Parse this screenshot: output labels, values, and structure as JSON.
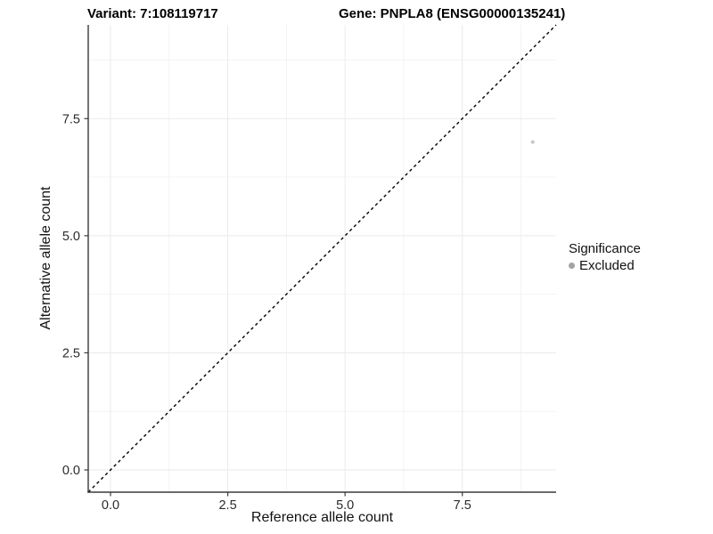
{
  "chart_data": {
    "type": "scatter",
    "title_left": "Variant: 7:108119717",
    "title_right": "Gene: PNPLA8 (ENSG00000135241)",
    "xlabel": "Reference allele count",
    "ylabel": "Alternative allele count",
    "xlim": [
      -0.475,
      9.5
    ],
    "ylim": [
      -0.475,
      9.5
    ],
    "x_ticks": [
      0.0,
      2.5,
      5.0,
      7.5
    ],
    "y_ticks": [
      0.0,
      2.5,
      5.0,
      7.5
    ],
    "x_tick_labels": [
      "0.0",
      "2.5",
      "5.0",
      "7.5"
    ],
    "y_tick_labels": [
      "0.0",
      "2.5",
      "5.0",
      "7.5"
    ],
    "minor_ticks": [
      1.25,
      3.75,
      6.25,
      8.75
    ],
    "grid": true,
    "reference_line": {
      "type": "identity",
      "style": "dashed",
      "color": "#000000"
    },
    "series": [
      {
        "name": "Excluded",
        "color": "#c6c6c6",
        "point_radius": 2,
        "points": [
          {
            "x": 9,
            "y": 7
          }
        ]
      }
    ],
    "legend": {
      "title": "Significance",
      "position": "right",
      "entries": [
        {
          "label": "Excluded",
          "color": "#a3a3a3"
        }
      ]
    }
  },
  "style": {
    "background": "#ffffff",
    "axis_line_color": "#3a3a3a",
    "tick_text_color": "#2b2b2b",
    "grid_major_color": "#eaeaea",
    "grid_minor_color": "#f3f3f3",
    "dashed_line_color": "#000000"
  }
}
